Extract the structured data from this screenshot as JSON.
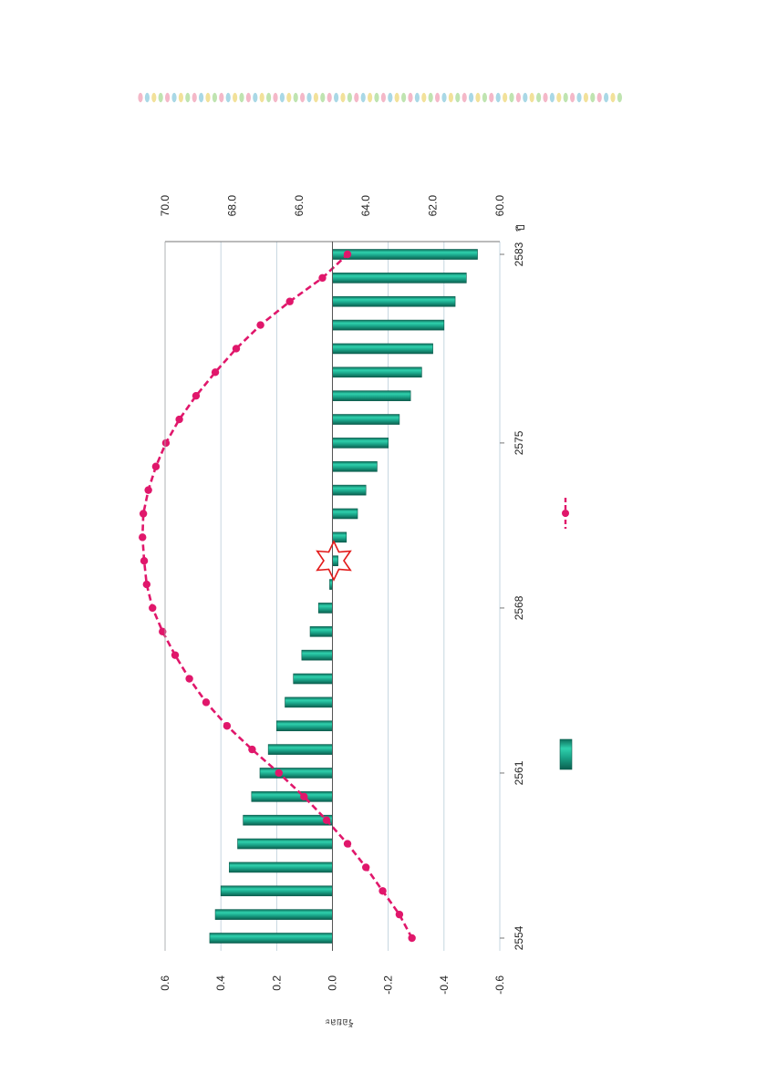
{
  "decor": {
    "dot_colors": [
      "#f4b8c8",
      "#a9d8e6",
      "#f2e19a",
      "#bfe4b0"
    ]
  },
  "chart_data": {
    "type": "bar",
    "orientation": "rotated-90",
    "x_tick_labels": [
      "2554",
      "2561",
      "2568",
      "2575",
      "2583"
    ],
    "x_unit_label": "ปี",
    "left_axis_title": "ร้อยละ",
    "left_ylim": [
      -0.6,
      0.6
    ],
    "left_ticks": [
      "0.6",
      "0.4",
      "0.2",
      "0.0",
      "-0.2",
      "-0.4",
      "-0.6"
    ],
    "right_ylim": [
      60,
      70
    ],
    "right_ticks": [
      "70.0",
      "68.0",
      "66.0",
      "64.0",
      "62.0",
      "60.0"
    ],
    "grid": true,
    "bar_color": "#1aa589",
    "line_color": "#e0176b",
    "series": [
      {
        "kind": "bar",
        "axis": "left",
        "x": [
          2554,
          2555,
          2556,
          2557,
          2558,
          2559,
          2560,
          2561,
          2562,
          2563,
          2564,
          2565,
          2566,
          2567,
          2568,
          2569,
          2570,
          2571,
          2572,
          2573,
          2574,
          2575,
          2576,
          2577,
          2578,
          2579,
          2580,
          2581,
          2582,
          2583
        ],
        "values": [
          0.44,
          0.42,
          0.4,
          0.37,
          0.34,
          0.32,
          0.29,
          0.26,
          0.23,
          0.2,
          0.17,
          0.14,
          0.11,
          0.08,
          0.05,
          0.01,
          -0.02,
          -0.05,
          -0.09,
          -0.12,
          -0.16,
          -0.2,
          -0.24,
          -0.28,
          -0.32,
          -0.36,
          -0.4,
          -0.44,
          -0.48,
          -0.52
        ]
      },
      {
        "kind": "line",
        "axis": "right",
        "x": [
          2554,
          2555,
          2556,
          2557,
          2558,
          2559,
          2560,
          2561,
          2562,
          2563,
          2564,
          2565,
          2566,
          2567,
          2568,
          2569,
          2570,
          2571,
          2572,
          2573,
          2574,
          2575,
          2576,
          2577,
          2578,
          2579,
          2580,
          2581,
          2582,
          2583
        ],
        "values": [
          62.5,
          63.0,
          63.5,
          64.0,
          64.5,
          65.2,
          65.8,
          66.6,
          67.4,
          68.2,
          68.8,
          69.3,
          69.7,
          70.1,
          70.4,
          70.6,
          70.6,
          70.7,
          70.7,
          70.5,
          70.3,
          70.0,
          69.6,
          69.1,
          68.5,
          67.9,
          67.2,
          66.3,
          65.3,
          64.3
        ]
      }
    ]
  }
}
